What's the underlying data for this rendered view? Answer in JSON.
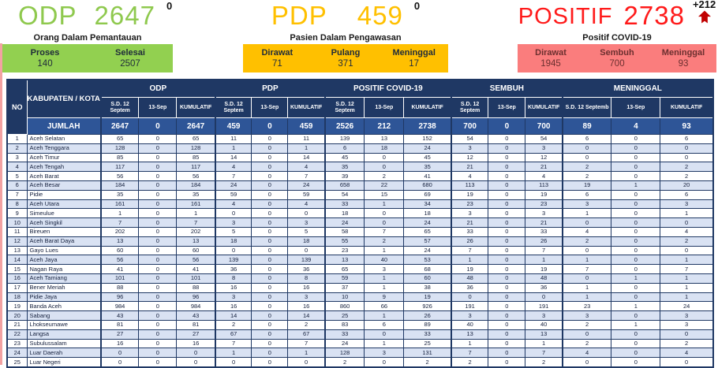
{
  "cards": {
    "odp": {
      "title": "ODP",
      "total": "2647",
      "sup": "0",
      "subtitle": "Orang Dalam Pemantauan",
      "color": "#92D050",
      "stats": [
        {
          "label": "Proses",
          "value": "140"
        },
        {
          "label": "Selesai",
          "value": "2507"
        }
      ]
    },
    "pdp": {
      "title": "PDP",
      "total": "459",
      "sup": "0",
      "subtitle": "Pasien Dalam Pengawasan",
      "color": "#FFC000",
      "stats": [
        {
          "label": "Dirawat",
          "value": "71"
        },
        {
          "label": "Pulang",
          "value": "371"
        },
        {
          "label": "Meninggal",
          "value": "17"
        }
      ]
    },
    "positif": {
      "title": "POSITIF",
      "total": "2738",
      "delta": "+212",
      "subtitle": "Positif COVID-19",
      "color": "#FA7D7D",
      "title_color": "#FF0000",
      "arrow_color": "#C00000",
      "stats": [
        {
          "label": "Dirawat",
          "value": "1945"
        },
        {
          "label": "Sembuh",
          "value": "700"
        },
        {
          "label": "Meninggal",
          "value": "93"
        }
      ]
    }
  },
  "chart_data": {
    "type": "table",
    "header_color": "#1F3864",
    "jumlah_row_color": "#2E5597",
    "alt_row_color": "#D9E2F3",
    "col_no": "NO",
    "col_region": "KABUPATEN / KOTA",
    "groups": [
      {
        "label": "ODP",
        "sub": [
          "S.D. 12 Septem",
          "13-Sep",
          "KUMULATIF"
        ]
      },
      {
        "label": "PDP",
        "sub": [
          "S.D. 12 Septem",
          "13-Sep",
          "KUMULATIF"
        ]
      },
      {
        "label": "POSITIF COVID-19",
        "sub": [
          "S.D. 12 Septem",
          "13-Sep",
          "KUMULATIF"
        ]
      },
      {
        "label": "SEMBUH",
        "sub": [
          "S.D. 12 Septem",
          "13-Sep",
          "KUMULATIF"
        ]
      },
      {
        "label": "MENINGGAL",
        "sub": [
          "S.D. 12 Septemb",
          "13-Sep",
          "KUMULATIF"
        ]
      }
    ],
    "jumlah_label": "JUMLAH",
    "jumlah": [
      2647,
      0,
      2647,
      459,
      0,
      459,
      2526,
      212,
      2738,
      700,
      0,
      700,
      89,
      4,
      93
    ],
    "rows": [
      {
        "no": 1,
        "name": "Aceh Selatan",
        "values": [
          65,
          0,
          65,
          11,
          0,
          11,
          139,
          13,
          152,
          54,
          0,
          54,
          6,
          0,
          6
        ]
      },
      {
        "no": 2,
        "name": "Aceh Tenggara",
        "values": [
          128,
          0,
          128,
          1,
          0,
          1,
          6,
          18,
          24,
          3,
          0,
          3,
          0,
          0,
          0
        ]
      },
      {
        "no": 3,
        "name": "Aceh Timur",
        "values": [
          85,
          0,
          85,
          14,
          0,
          14,
          45,
          0,
          45,
          12,
          0,
          12,
          0,
          0,
          0
        ]
      },
      {
        "no": 4,
        "name": "Aceh Tengah",
        "values": [
          117,
          0,
          117,
          4,
          0,
          4,
          35,
          0,
          35,
          21,
          0,
          21,
          2,
          0,
          2
        ]
      },
      {
        "no": 5,
        "name": "Aceh Barat",
        "values": [
          56,
          0,
          56,
          7,
          0,
          7,
          39,
          2,
          41,
          4,
          0,
          4,
          2,
          0,
          2
        ]
      },
      {
        "no": 6,
        "name": "Aceh Besar",
        "values": [
          184,
          0,
          184,
          24,
          0,
          24,
          658,
          22,
          680,
          113,
          0,
          113,
          19,
          1,
          20
        ]
      },
      {
        "no": 7,
        "name": "Pidie",
        "values": [
          35,
          0,
          35,
          59,
          0,
          59,
          54,
          15,
          69,
          19,
          0,
          19,
          6,
          0,
          6
        ]
      },
      {
        "no": 8,
        "name": "Aceh Utara",
        "values": [
          161,
          0,
          161,
          4,
          0,
          4,
          33,
          1,
          34,
          23,
          0,
          23,
          3,
          0,
          3
        ]
      },
      {
        "no": 9,
        "name": "Simeulue",
        "values": [
          1,
          0,
          1,
          0,
          0,
          0,
          18,
          0,
          18,
          3,
          0,
          3,
          1,
          0,
          1
        ]
      },
      {
        "no": 10,
        "name": "Aceh Singkil",
        "values": [
          7,
          0,
          7,
          3,
          0,
          3,
          24,
          0,
          24,
          21,
          0,
          21,
          0,
          0,
          0
        ]
      },
      {
        "no": 11,
        "name": "Bireuen",
        "values": [
          202,
          0,
          202,
          5,
          0,
          5,
          58,
          7,
          65,
          33,
          0,
          33,
          4,
          0,
          4
        ]
      },
      {
        "no": 12,
        "name": "Aceh Barat Daya",
        "values": [
          13,
          0,
          13,
          18,
          0,
          18,
          55,
          2,
          57,
          26,
          0,
          26,
          2,
          0,
          2
        ]
      },
      {
        "no": 13,
        "name": "Gayo Lues",
        "values": [
          60,
          0,
          60,
          0,
          0,
          0,
          23,
          1,
          24,
          7,
          0,
          7,
          0,
          0,
          0
        ]
      },
      {
        "no": 14,
        "name": "Aceh Jaya",
        "values": [
          56,
          0,
          56,
          139,
          0,
          139,
          13,
          40,
          53,
          1,
          0,
          1,
          1,
          0,
          1
        ]
      },
      {
        "no": 15,
        "name": "Nagan Raya",
        "values": [
          41,
          0,
          41,
          36,
          0,
          36,
          65,
          3,
          68,
          19,
          0,
          19,
          7,
          0,
          7
        ]
      },
      {
        "no": 16,
        "name": "Aceh Tamiang",
        "values": [
          101,
          0,
          101,
          8,
          0,
          8,
          59,
          1,
          60,
          48,
          0,
          48,
          0,
          1,
          1
        ]
      },
      {
        "no": 17,
        "name": "Bener Meriah",
        "values": [
          88,
          0,
          88,
          16,
          0,
          16,
          37,
          1,
          38,
          36,
          0,
          36,
          1,
          0,
          1
        ]
      },
      {
        "no": 18,
        "name": "Pidie Jaya",
        "values": [
          96,
          0,
          96,
          3,
          0,
          3,
          10,
          9,
          19,
          0,
          0,
          0,
          1,
          0,
          1
        ]
      },
      {
        "no": 19,
        "name": "Banda Aceh",
        "values": [
          984,
          0,
          984,
          16,
          0,
          16,
          860,
          66,
          926,
          191,
          0,
          191,
          23,
          1,
          24
        ]
      },
      {
        "no": 20,
        "name": "Sabang",
        "values": [
          43,
          0,
          43,
          14,
          0,
          14,
          25,
          1,
          26,
          3,
          0,
          3,
          3,
          0,
          3
        ]
      },
      {
        "no": 21,
        "name": "Lhokseumawe",
        "values": [
          81,
          0,
          81,
          2,
          0,
          2,
          83,
          6,
          89,
          40,
          0,
          40,
          2,
          1,
          3
        ]
      },
      {
        "no": 22,
        "name": "Langsa",
        "values": [
          27,
          0,
          27,
          67,
          0,
          67,
          33,
          0,
          33,
          13,
          0,
          13,
          0,
          0,
          0
        ]
      },
      {
        "no": 23,
        "name": "Subulussalam",
        "values": [
          16,
          0,
          16,
          7,
          0,
          7,
          24,
          1,
          25,
          1,
          0,
          1,
          2,
          0,
          2
        ]
      },
      {
        "no": 24,
        "name": "Luar Daerah",
        "values": [
          0,
          0,
          0,
          1,
          0,
          1,
          128,
          3,
          131,
          7,
          0,
          7,
          4,
          0,
          4
        ]
      },
      {
        "no": 25,
        "name": "Luar Negeri",
        "values": [
          0,
          0,
          0,
          0,
          0,
          0,
          2,
          0,
          2,
          2,
          0,
          2,
          0,
          0,
          0
        ]
      }
    ]
  }
}
